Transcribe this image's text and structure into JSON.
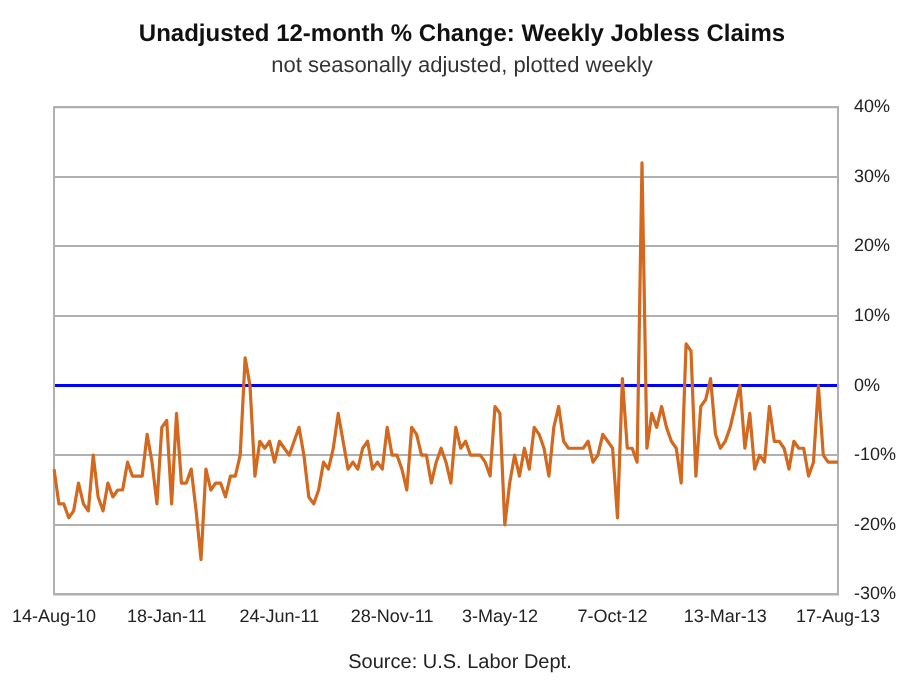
{
  "chart_data": {
    "type": "line",
    "title": "Unadjusted 12-month % Change: Weekly Jobless Claims",
    "subtitle": "not seasonally adjusted, plotted weekly",
    "categories": [
      "14-Aug-10",
      null,
      null,
      null,
      null,
      null,
      null,
      null,
      null,
      null,
      null,
      null,
      null,
      null,
      null,
      null,
      null,
      null,
      null,
      null,
      null,
      null,
      null,
      "18-Jan-11",
      null,
      null,
      null,
      null,
      null,
      null,
      null,
      null,
      null,
      null,
      null,
      null,
      null,
      null,
      null,
      null,
      null,
      null,
      null,
      null,
      null,
      null,
      "24-Jun-11",
      null,
      null,
      null,
      null,
      null,
      null,
      null,
      null,
      null,
      null,
      null,
      null,
      null,
      null,
      null,
      null,
      null,
      null,
      null,
      null,
      null,
      null,
      "28-Nov-11",
      null,
      null,
      null,
      null,
      null,
      null,
      null,
      null,
      null,
      null,
      null,
      null,
      null,
      null,
      null,
      null,
      null,
      null,
      null,
      null,
      null,
      "3-May-12",
      null,
      null,
      null,
      null,
      null,
      null,
      null,
      null,
      null,
      null,
      null,
      null,
      null,
      null,
      null,
      null,
      null,
      null,
      null,
      null,
      null,
      null,
      "7-Oct-12",
      null,
      null,
      null,
      null,
      null,
      null,
      null,
      null,
      null,
      null,
      null,
      null,
      null,
      null,
      null,
      null,
      null,
      null,
      null,
      null,
      null,
      null,
      "13-Mar-13",
      null,
      null,
      null,
      null,
      null,
      null,
      null,
      null,
      null,
      null,
      null,
      null,
      null,
      null,
      null,
      null,
      null,
      null,
      null,
      null,
      null,
      null,
      "17-Aug-13"
    ],
    "series": [
      {
        "color": "#d2691e",
        "values": [
          -12,
          -17,
          -17,
          -19,
          -18,
          -14,
          -17,
          -18,
          -10,
          -16,
          -18,
          -14,
          -16,
          -15,
          -15,
          -11,
          -13,
          -13,
          -13,
          -7,
          -11,
          -17,
          -6,
          -5,
          -17,
          -4,
          -14,
          -14,
          -12,
          -18,
          -25,
          -12,
          -15,
          -14,
          -14,
          -16,
          -13,
          -13,
          -10,
          4,
          0,
          -13,
          -8,
          -9,
          -8,
          -11,
          -8,
          -9,
          -10,
          -8,
          -6,
          -10,
          -16,
          -17,
          -15,
          -11,
          -12,
          -9,
          -4,
          -8,
          -12,
          -11,
          -12,
          -9,
          -8,
          -12,
          -11,
          -12,
          -6,
          -10,
          -10,
          -12,
          -15,
          -6,
          -7,
          -10,
          -10,
          -14,
          -11,
          -9,
          -11,
          -14,
          -6,
          -9,
          -8,
          -10,
          -10,
          -10,
          -11,
          -13,
          -3,
          -4,
          -20,
          -14,
          -10,
          -13,
          -9,
          -12,
          -6,
          -7,
          -9,
          -13,
          -6,
          -3,
          -8,
          -9,
          -9,
          -9,
          -9,
          -8,
          -11,
          -10,
          -7,
          -8,
          -9,
          -19,
          1,
          -9,
          -9,
          -11,
          32,
          -9,
          -4,
          -6,
          -3,
          -6,
          -8,
          -9,
          -14,
          6,
          5,
          -13,
          -3,
          -2,
          1,
          -7,
          -9,
          -8,
          -6,
          -3,
          0,
          -9,
          -4,
          -12,
          -10,
          -11,
          -3,
          -8,
          -8,
          -9,
          -12,
          -8,
          -9,
          -9,
          -13,
          -11,
          0,
          -10,
          -11,
          -11,
          -11
        ]
      }
    ],
    "ylim": [
      -30,
      40
    ],
    "yticks": [
      {
        "value": -30,
        "label": "-30%"
      },
      {
        "value": -20,
        "label": "-20%"
      },
      {
        "value": -10,
        "label": "-10%"
      },
      {
        "value": 0,
        "label": "0%"
      },
      {
        "value": 10,
        "label": "10%"
      },
      {
        "value": 20,
        "label": "20%"
      },
      {
        "value": 30,
        "label": "30%"
      },
      {
        "value": 40,
        "label": "40%"
      }
    ],
    "ref_lines": [
      {
        "axis": "y",
        "value": 0,
        "color": "#0000ff"
      }
    ],
    "grid": "y",
    "legend": false,
    "marker": "none",
    "line_style": "solid",
    "annotations": [
      "Source: U.S. Labor Dept."
    ]
  }
}
